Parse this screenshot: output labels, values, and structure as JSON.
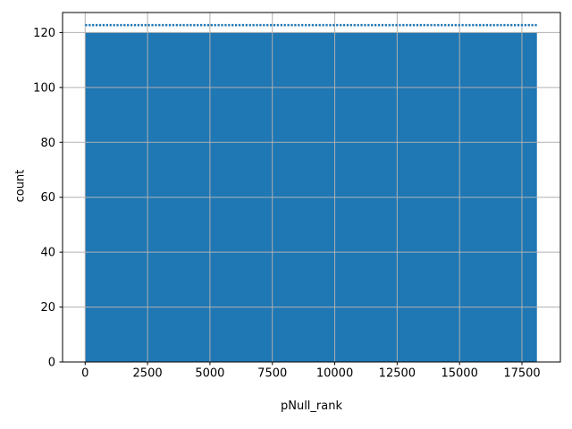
{
  "figure": {
    "background": "#ffffff"
  },
  "chart_data": {
    "type": "bar",
    "subtype": "histogram",
    "title": "",
    "xlabel": "pNull_rank",
    "ylabel": "count",
    "x_ticks": [
      0,
      2500,
      5000,
      7500,
      10000,
      12500,
      15000,
      17500
    ],
    "y_ticks": [
      0,
      20,
      40,
      60,
      80,
      100,
      120
    ],
    "xlim": [
      -905,
      19040
    ],
    "ylim": [
      0,
      127.3
    ],
    "grid": true,
    "legend": false,
    "bars": {
      "x_start": 0,
      "x_end": 18100,
      "height": 120,
      "height_min": 119.5,
      "height_max": 122.5
    },
    "reference_line": {
      "y": 122.7,
      "x_start": 0,
      "x_end": 18100,
      "style": "dotted"
    },
    "colors": {
      "bar_fill": "#1f77b4",
      "reference_line": "#1f77b4",
      "grid": "#b0b0b0",
      "axis": "#000000",
      "text": "#000000"
    }
  }
}
